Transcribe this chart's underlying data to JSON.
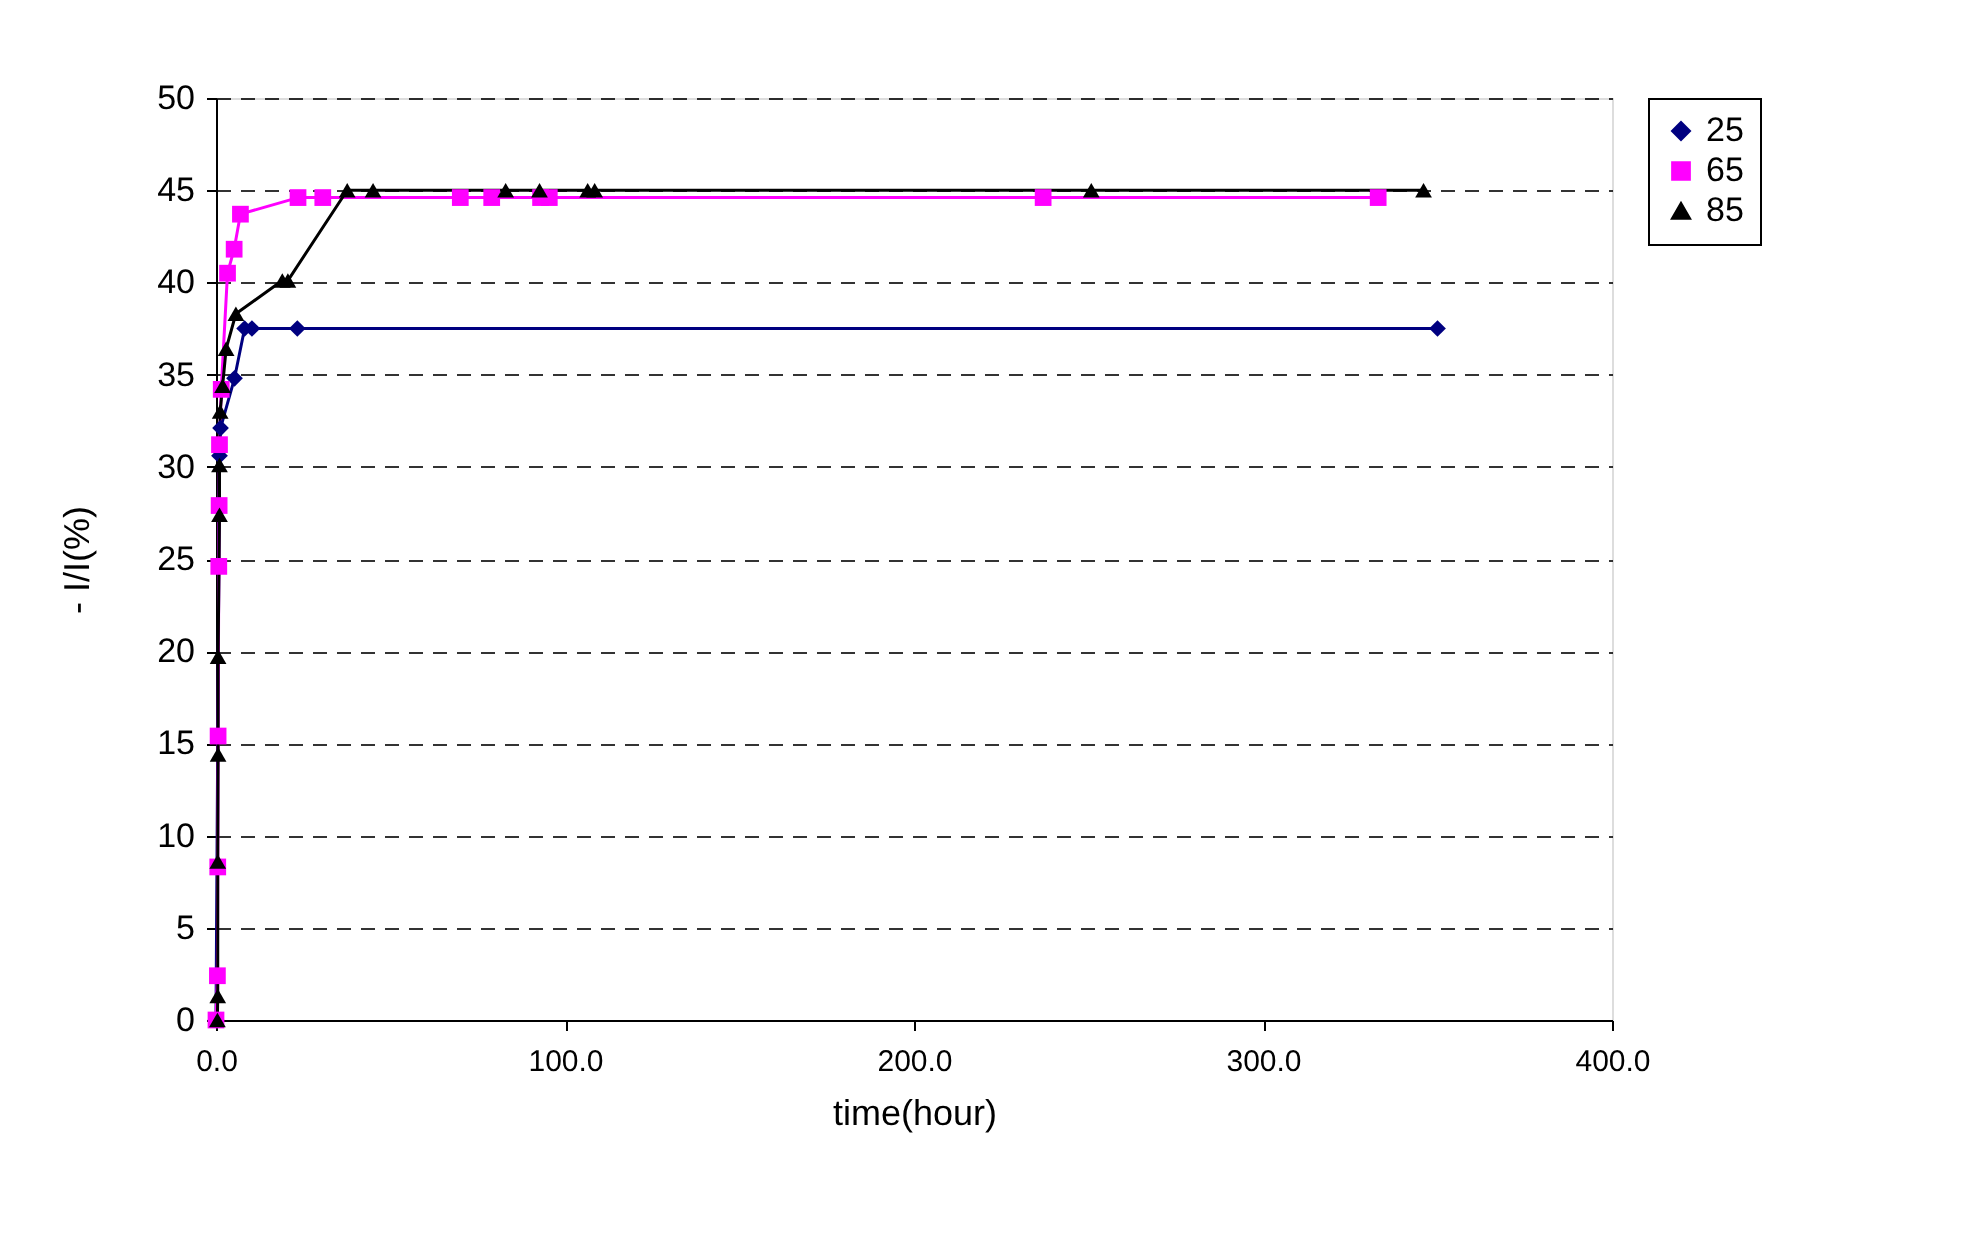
{
  "chart_data": {
    "type": "line",
    "xlabel": "time(hour)",
    "ylabel": "- I/I(%)",
    "xlim": [
      0,
      400
    ],
    "xticks": [
      {
        "value": 0,
        "label": "0.0"
      },
      {
        "value": 100,
        "label": "100.0"
      },
      {
        "value": 200,
        "label": "200.0"
      },
      {
        "value": 300,
        "label": "300.0"
      },
      {
        "value": 400,
        "label": "400.0"
      }
    ],
    "ylim": [
      0,
      50
    ],
    "yticks": [
      0,
      5,
      10,
      15,
      20,
      25,
      30,
      35,
      40,
      45,
      50
    ],
    "grid": "y",
    "legend": "right",
    "line_style": "solid",
    "series": [
      {
        "name": "25",
        "color": "#000080",
        "marker": "diamond",
        "x": [
          0,
          1,
          1.3,
          5.3,
          8.2,
          10.3,
          23.3,
          350
        ],
        "values": [
          0,
          30.6,
          32.1,
          34.8,
          37.5,
          37.5,
          37.5,
          37.5
        ]
      },
      {
        "name": "65",
        "color": "#ff00ff",
        "marker": "square",
        "x": [
          0,
          0.4,
          0.5,
          0.6,
          0.8,
          0.9,
          1,
          1.5,
          3.3,
          5.2,
          7,
          23.5,
          30.6,
          70,
          79,
          93,
          95.5,
          237,
          333
        ],
        "values": [
          0,
          2.4,
          8.3,
          15.4,
          24.6,
          27.9,
          31.2,
          34.2,
          40.5,
          41.8,
          43.7,
          44.6,
          44.6,
          44.6,
          44.6,
          44.6,
          44.6,
          44.6,
          44.6
        ]
      },
      {
        "name": "85",
        "color": "#000000",
        "marker": "triangle",
        "x": [
          0.4,
          0.5,
          0.5,
          0.6,
          0.6,
          1,
          1,
          1.2,
          1.9,
          2.9,
          5.7,
          19,
          20.6,
          37.6,
          45,
          83,
          92.7,
          106.5,
          108.5,
          250.8,
          346
        ],
        "values": [
          0,
          1.3,
          8.6,
          14.4,
          19.7,
          27.4,
          30.1,
          33,
          34.4,
          36.4,
          38.3,
          40.1,
          40.1,
          45,
          45,
          45,
          45,
          45,
          45,
          45,
          45
        ]
      }
    ]
  }
}
